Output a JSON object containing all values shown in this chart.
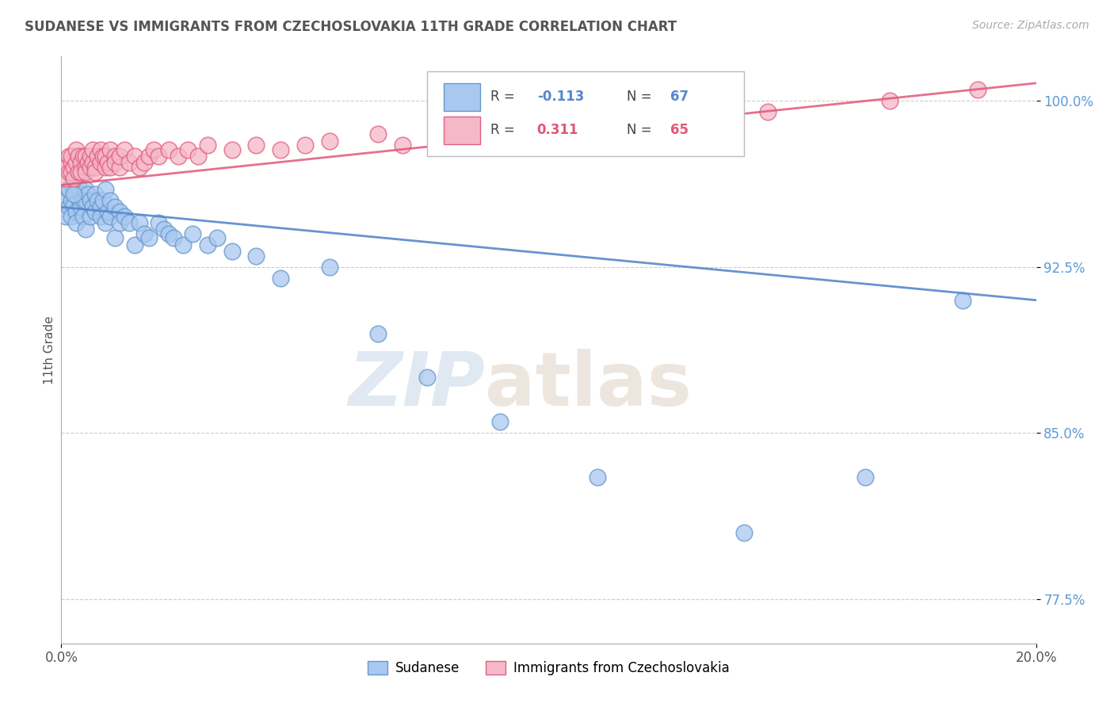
{
  "title": "SUDANESE VS IMMIGRANTS FROM CZECHOSLOVAKIA 11TH GRADE CORRELATION CHART",
  "source_text": "Source: ZipAtlas.com",
  "ylabel_text": "11th Grade",
  "x_min": 0.0,
  "x_max": 20.0,
  "y_min": 75.5,
  "y_max": 102.0,
  "y_ticks": [
    77.5,
    85.0,
    92.5,
    100.0
  ],
  "y_tick_labels": [
    "77.5%",
    "85.0%",
    "92.5%",
    "100.0%"
  ],
  "x_tick_labels": [
    "0.0%",
    "20.0%"
  ],
  "series1_name": "Sudanese",
  "series2_name": "Immigrants from Czechoslovakia",
  "series1_color": "#A8C8F0",
  "series2_color": "#F5B8C8",
  "series1_edge_color": "#6699CC",
  "series2_edge_color": "#E06080",
  "series1_line_color": "#5588CC",
  "series2_line_color": "#E05878",
  "watermark_zip": "ZIP",
  "watermark_atlas": "atlas",
  "background_color": "#ffffff",
  "series1_R": -0.113,
  "series1_N": 67,
  "series2_R": 0.311,
  "series2_N": 65,
  "series1_line_y0": 95.2,
  "series1_line_y1": 91.0,
  "series2_line_y0": 96.2,
  "series2_line_y1": 100.8
}
